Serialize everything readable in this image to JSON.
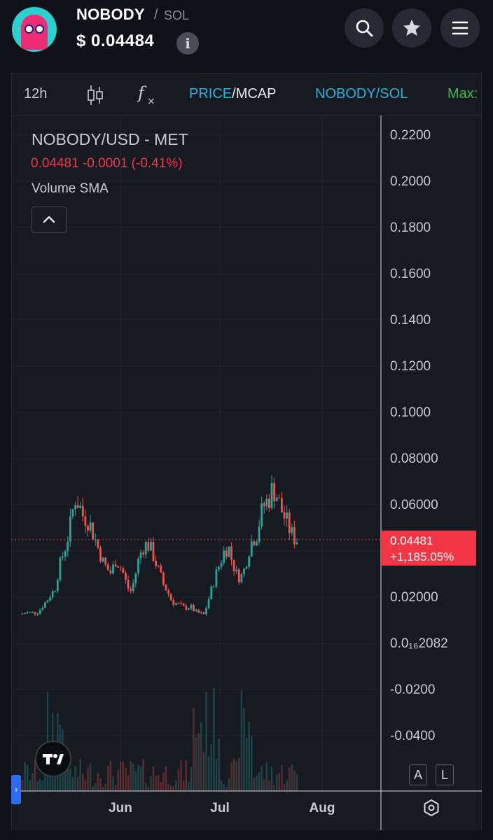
{
  "header": {
    "token_name": "NOBODY",
    "slash": "/",
    "pair_quote": "SOL",
    "price_label": "$ 0.04484",
    "info_icon": "info-icon",
    "buttons": [
      "search-icon",
      "star-icon",
      "menu-icon"
    ]
  },
  "toolbar": {
    "interval": "12h",
    "candles_icon": "candlestick-icon",
    "indicators_icon": "fx-icon",
    "price_label": "PRICE",
    "separator": "/",
    "mcap_label": "MCAP",
    "pair_label": "NOBODY/SOL",
    "max_label": "Max:"
  },
  "legend": {
    "title": "NOBODY/USD - MET",
    "quote": "0.04481 -0.0001 (-0.41%)",
    "volume": "Volume SMA"
  },
  "buttons": {
    "a_label": "A",
    "l_label": "L"
  },
  "colors": {
    "up": "#26a69a",
    "down": "#ef5350",
    "price_tag": "#f23645",
    "accent": "#2ab3d8",
    "max": "#3fb950"
  },
  "chart_data": {
    "type": "candlestick",
    "title": "NOBODY/USD - MET",
    "interval": "12h",
    "y_tick_labels": [
      "0.2200",
      "0.2000",
      "0.1800",
      "0.1600",
      "0.1400",
      "0.1200",
      "0.1000",
      "0.08000",
      "0.06000",
      "0.02000",
      "0.0₁₆2082",
      "-0.0200",
      "-0.0400"
    ],
    "x_tick_labels": [
      "Jun",
      "Jul",
      "Aug"
    ],
    "ylim": [
      -0.052,
      0.23
    ],
    "grid": true,
    "last_price": {
      "value": 0.04481,
      "label": "0.04481",
      "change_label": "+1,185.05%"
    },
    "candles": {
      "count": 110,
      "close_path": [
        0.0125,
        0.013,
        0.0128,
        0.013,
        0.0135,
        0.016,
        0.018,
        0.021,
        0.023,
        0.032,
        0.038,
        0.044,
        0.052,
        0.063,
        0.06,
        0.055,
        0.054,
        0.05,
        0.045,
        0.04,
        0.035,
        0.032,
        0.03,
        0.036,
        0.034,
        0.03,
        0.024,
        0.022,
        0.03,
        0.038,
        0.042,
        0.043,
        0.04,
        0.035,
        0.03,
        0.025,
        0.022,
        0.018,
        0.017,
        0.016,
        0.015,
        0.0155,
        0.015,
        0.013,
        0.0125,
        0.012,
        0.018,
        0.024,
        0.03,
        0.035,
        0.04,
        0.042,
        0.035,
        0.03,
        0.028,
        0.032,
        0.04,
        0.045,
        0.047,
        0.055,
        0.06,
        0.062,
        0.067,
        0.064,
        0.058,
        0.054,
        0.05,
        0.046,
        0.0448
      ]
    }
  }
}
